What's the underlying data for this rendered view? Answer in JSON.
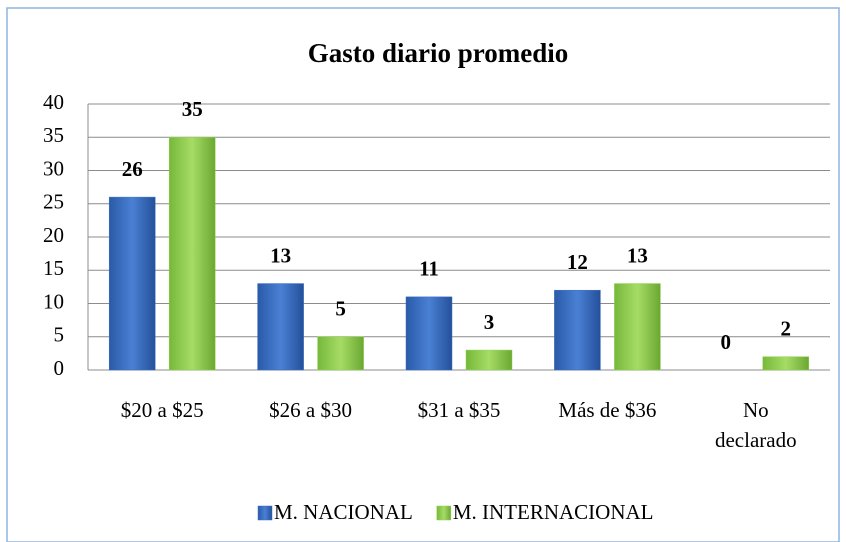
{
  "chart_data": {
    "type": "bar",
    "title": "Gasto diario promedio",
    "categories": [
      "$20 a $25",
      "$26 a $30",
      "$31 a $35",
      "Más de $36",
      "No declarado"
    ],
    "series": [
      {
        "name": "M. NACIONAL",
        "color": "#3c71c4",
        "values": [
          26,
          13,
          11,
          12,
          0
        ]
      },
      {
        "name": "M. INTERNACIONAL",
        "color": "#92d050",
        "values": [
          35,
          5,
          3,
          13,
          2
        ]
      }
    ],
    "ylim": [
      0,
      40
    ],
    "yticks": [
      0,
      5,
      10,
      15,
      20,
      25,
      30,
      35,
      40
    ],
    "grid": true,
    "legend": "bottom"
  }
}
